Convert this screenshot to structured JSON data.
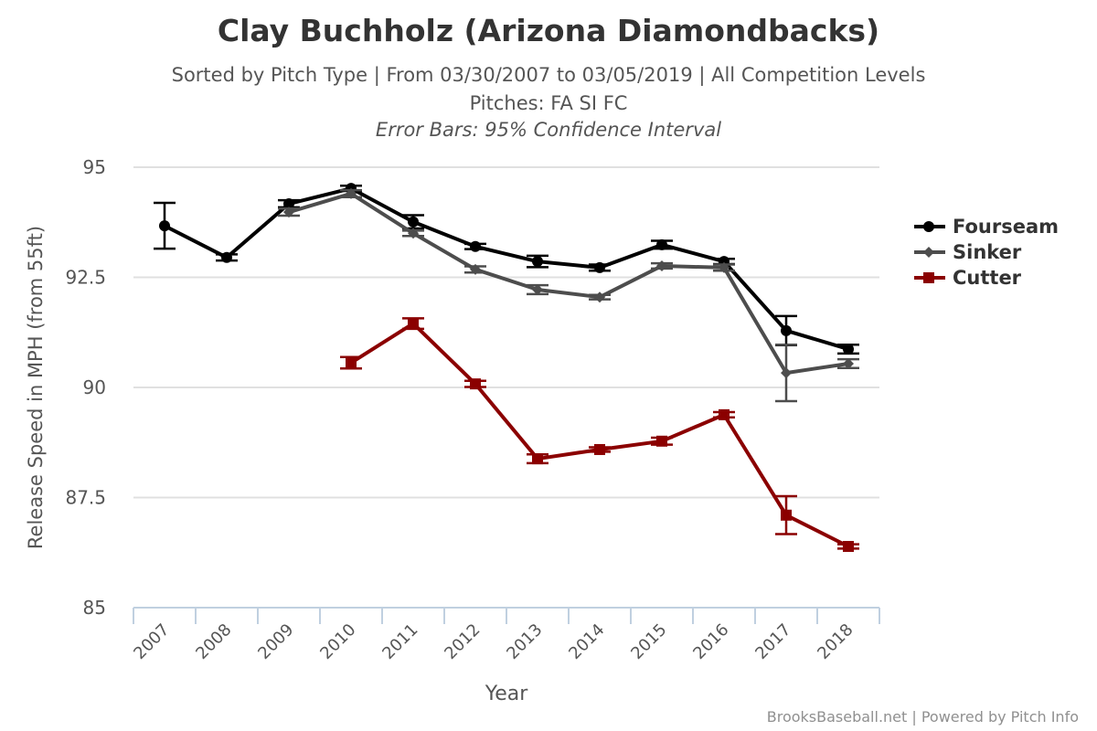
{
  "chart_data": {
    "type": "line",
    "title": "Clay Buchholz (Arizona Diamondbacks)",
    "subtitle": "Sorted by Pitch Type | From 03/30/2007 to 03/05/2019 | All Competition Levels",
    "subtitle2": "Pitches: FA SI FC",
    "subtitle3": "Error Bars: 95% Confidence Interval",
    "xlabel": "Year",
    "ylabel": "Release Speed in MPH (from 55ft)",
    "categories": [
      "2007",
      "2008",
      "2009",
      "2010",
      "2011",
      "2012",
      "2013",
      "2014",
      "2015",
      "2016",
      "2017",
      "2018"
    ],
    "ylim": [
      85,
      95
    ],
    "yticks": [
      "85",
      "87.5",
      "90",
      "92.5",
      "95"
    ],
    "grid": true,
    "legend_position": "right",
    "series": [
      {
        "name": "Fourseam",
        "color": "#000000",
        "marker": "circle",
        "values": [
          93.67,
          92.95,
          94.17,
          94.52,
          93.76,
          93.2,
          92.86,
          92.72,
          93.24,
          92.86,
          91.29,
          90.87
        ],
        "err": [
          0.52,
          0.07,
          0.08,
          0.06,
          0.15,
          0.06,
          0.13,
          0.07,
          0.09,
          0.06,
          0.33,
          0.1
        ]
      },
      {
        "name": "Sinker",
        "color": "#4d4d4d",
        "marker": "diamond",
        "values": [
          null,
          null,
          93.98,
          94.4,
          93.5,
          92.68,
          92.22,
          92.05,
          92.76,
          92.72,
          90.33,
          90.54
        ],
        "err": [
          null,
          null,
          0.08,
          0.08,
          0.06,
          0.07,
          0.1,
          0.05,
          0.06,
          0.07,
          0.64,
          0.1
        ]
      },
      {
        "name": "Cutter",
        "color": "#8b0000",
        "marker": "square",
        "values": [
          null,
          null,
          null,
          90.56,
          91.45,
          90.08,
          88.38,
          88.59,
          88.78,
          89.38,
          87.1,
          86.39
        ],
        "err": [
          null,
          null,
          null,
          0.13,
          0.12,
          0.07,
          0.1,
          0.05,
          0.08,
          0.06,
          0.43,
          0.05
        ]
      }
    ]
  },
  "credit": "BrooksBaseball.net | Powered by Pitch Info"
}
